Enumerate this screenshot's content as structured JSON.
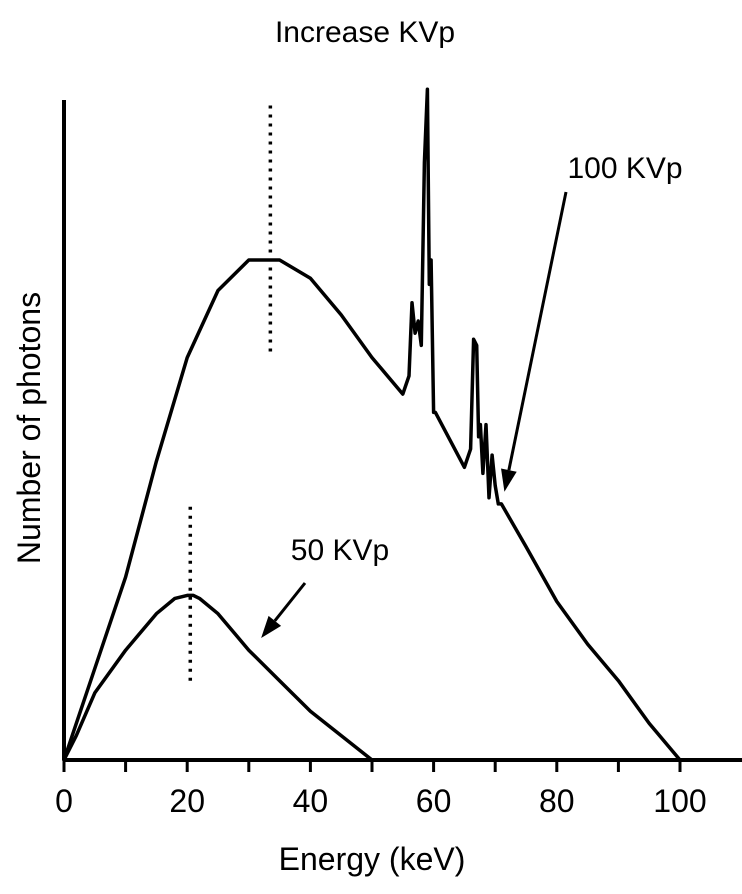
{
  "chart_data": {
    "type": "line",
    "title": "Increase KVp",
    "xlabel": "Energy (keV)",
    "ylabel": "Number of photons",
    "xlim": [
      0,
      108
    ],
    "ylim": [
      0,
      100
    ],
    "x_ticks": [
      0,
      10,
      20,
      30,
      40,
      50,
      60,
      70,
      80,
      90,
      100
    ],
    "x_tick_labels": [
      "0",
      "",
      "20",
      "",
      "40",
      "",
      "60",
      "",
      "80",
      "",
      "100"
    ],
    "y_ticks_shown": false,
    "grid": false,
    "series": [
      {
        "name": "100 KVp",
        "x": [
          0,
          2,
          5,
          10,
          15,
          20,
          25,
          30,
          35,
          40,
          45,
          50,
          55,
          56,
          56.5,
          57,
          57.5,
          58,
          58.5,
          59,
          59.3,
          59.6,
          60,
          60.3,
          65,
          66,
          66.5,
          67,
          67.3,
          67.6,
          68,
          68.5,
          69,
          69.5,
          70,
          70.5,
          71,
          75,
          80,
          85,
          90,
          95,
          100
        ],
        "y": [
          0,
          6,
          15,
          30,
          49,
          66,
          77,
          82,
          82,
          79,
          73,
          66,
          60,
          63,
          75,
          70,
          72,
          68,
          98,
          110,
          78,
          82,
          57,
          57,
          48,
          51,
          69,
          68,
          53,
          55,
          47,
          55,
          43,
          50,
          45,
          42,
          42,
          35,
          26,
          19,
          13,
          6,
          0
        ]
      },
      {
        "name": "50 KVp",
        "x": [
          0,
          2,
          5,
          10,
          15,
          18,
          20,
          21,
          22,
          25,
          30,
          35,
          40,
          45,
          50
        ],
        "y": [
          0,
          4,
          11,
          18,
          24,
          26.5,
          27,
          27,
          26.5,
          24,
          18,
          13,
          8,
          4,
          0
        ]
      }
    ],
    "reference_lines": [
      {
        "x": 33.5,
        "y_from": 67,
        "y_to": 108,
        "style": "dotted"
      },
      {
        "x": 20.5,
        "y_from": 13,
        "y_to": 42,
        "style": "dotted"
      }
    ],
    "annotations": [
      {
        "text": "100 KVp",
        "points_to": [
          71.5,
          44
        ]
      },
      {
        "text": "50 KVp",
        "points_to": [
          32,
          20
        ]
      }
    ]
  }
}
